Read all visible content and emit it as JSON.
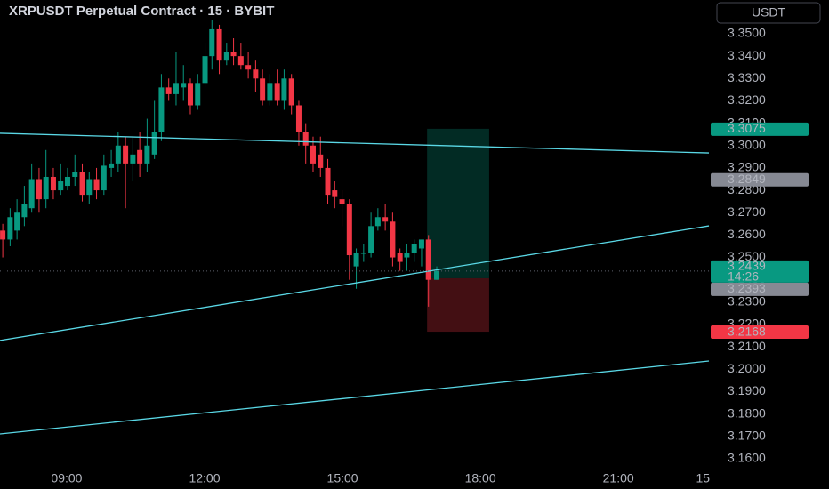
{
  "chart_data": {
    "type": "candlestick",
    "title": "XRPUSDT Perpetual Contract · 15 · BYBIT",
    "currency": "USDT",
    "up_color": "#089981",
    "down_color": "#f23645",
    "x": [
      7.61,
      7.77,
      7.92,
      8.08,
      8.24,
      8.4,
      8.55,
      8.71,
      8.87,
      9.02,
      9.18,
      9.34,
      9.49,
      9.65,
      9.81,
      9.97,
      10.12,
      10.28,
      10.44,
      10.59,
      10.75,
      10.91,
      11.06,
      11.22,
      11.38,
      11.54,
      11.69,
      11.85,
      12.01,
      12.16,
      12.32,
      12.48,
      12.63,
      12.79,
      12.95,
      13.11,
      13.26,
      13.42,
      13.58,
      13.73,
      13.89,
      14.05,
      14.2,
      14.36,
      14.52,
      14.68,
      14.83,
      14.99,
      15.15,
      15.3,
      15.46,
      15.62,
      15.77,
      15.93,
      16.09,
      16.25,
      16.4,
      16.56,
      16.72,
      16.87,
      17.05
    ],
    "open": [
      3.262,
      3.258,
      3.262,
      3.268,
      3.272,
      3.285,
      3.276,
      3.286,
      3.28,
      3.282,
      3.286,
      3.288,
      3.278,
      3.285,
      3.28,
      3.29,
      3.292,
      3.3,
      3.292,
      3.298,
      3.292,
      3.296,
      3.306,
      3.326,
      3.323,
      3.326,
      3.328,
      3.318,
      3.328,
      3.34,
      3.352,
      3.338,
      3.342,
      3.34,
      3.336,
      3.334,
      3.33,
      3.32,
      3.328,
      3.32,
      3.33,
      3.318,
      3.306,
      3.3,
      3.296,
      3.29,
      3.28,
      3.276,
      3.274,
      3.246,
      3.252,
      3.252,
      3.264,
      3.268,
      3.266,
      3.252,
      3.25,
      3.252,
      3.254,
      3.258,
      3.24
    ],
    "high": [
      3.265,
      3.272,
      3.276,
      3.282,
      3.292,
      3.29,
      3.298,
      3.29,
      3.292,
      3.29,
      3.296,
      3.292,
      3.288,
      3.29,
      3.296,
      3.298,
      3.306,
      3.304,
      3.304,
      3.306,
      3.312,
      3.32,
      3.332,
      3.33,
      3.342,
      3.336,
      3.33,
      3.332,
      3.346,
      3.356,
      3.354,
      3.346,
      3.348,
      3.346,
      3.342,
      3.338,
      3.334,
      3.332,
      3.334,
      3.334,
      3.332,
      3.32,
      3.31,
      3.304,
      3.304,
      3.294,
      3.284,
      3.28,
      3.276,
      3.254,
      3.256,
      3.27,
      3.272,
      3.274,
      3.27,
      3.254,
      3.256,
      3.258,
      3.258,
      3.26,
      3.246
    ],
    "low": [
      3.25,
      3.255,
      3.258,
      3.264,
      3.27,
      3.27,
      3.272,
      3.276,
      3.278,
      3.28,
      3.282,
      3.275,
      3.274,
      3.276,
      3.278,
      3.286,
      3.288,
      3.272,
      3.284,
      3.286,
      3.288,
      3.294,
      3.302,
      3.32,
      3.318,
      3.32,
      3.314,
      3.316,
      3.326,
      3.334,
      3.332,
      3.336,
      3.336,
      3.334,
      3.33,
      3.324,
      3.318,
      3.318,
      3.318,
      3.316,
      3.314,
      3.3,
      3.292,
      3.288,
      3.286,
      3.274,
      3.272,
      3.264,
      3.24,
      3.236,
      3.248,
      3.25,
      3.262,
      3.262,
      3.246,
      3.244,
      3.244,
      3.248,
      3.246,
      3.228,
      3.24
    ],
    "close": [
      3.258,
      3.268,
      3.27,
      3.274,
      3.285,
      3.276,
      3.286,
      3.28,
      3.284,
      3.286,
      3.288,
      3.278,
      3.285,
      3.28,
      3.291,
      3.292,
      3.3,
      3.292,
      3.296,
      3.292,
      3.3,
      3.306,
      3.326,
      3.323,
      3.328,
      3.328,
      3.318,
      3.328,
      3.34,
      3.352,
      3.338,
      3.342,
      3.34,
      3.336,
      3.334,
      3.33,
      3.32,
      3.328,
      3.32,
      3.33,
      3.318,
      3.306,
      3.3,
      3.292,
      3.29,
      3.278,
      3.277,
      3.274,
      3.251,
      3.252,
      3.252,
      3.264,
      3.268,
      3.266,
      3.25,
      3.248,
      3.252,
      3.256,
      3.258,
      3.24,
      3.2439
    ],
    "xlim": [
      7.55,
      22.97
    ],
    "xticks": [
      {
        "value": 9,
        "label": "09:00"
      },
      {
        "value": 12,
        "label": "12:00"
      },
      {
        "value": 15,
        "label": "15:00"
      },
      {
        "value": 18,
        "label": "18:00"
      },
      {
        "value": 21,
        "label": "21:00"
      },
      {
        "value": 22.84,
        "label": "15"
      }
    ],
    "ylim": [
      3.1564,
      3.3651
    ],
    "yticks": [
      {
        "value": 3.16,
        "label": "3.1600"
      },
      {
        "value": 3.17,
        "label": "3.1700"
      },
      {
        "value": 3.18,
        "label": "3.1800"
      },
      {
        "value": 3.19,
        "label": "3.1900"
      },
      {
        "value": 3.2,
        "label": "3.2000"
      },
      {
        "value": 3.21,
        "label": "3.2100"
      },
      {
        "value": 3.22,
        "label": "3.2200"
      },
      {
        "value": 3.23,
        "label": "3.2300"
      },
      {
        "value": 3.24,
        "label": "3.2400"
      },
      {
        "value": 3.25,
        "label": "3.2500"
      },
      {
        "value": 3.26,
        "label": "3.2600"
      },
      {
        "value": 3.27,
        "label": "3.2700"
      },
      {
        "value": 3.28,
        "label": "3.2800"
      },
      {
        "value": 3.29,
        "label": "3.2900"
      },
      {
        "value": 3.3,
        "label": "3.3000"
      },
      {
        "value": 3.31,
        "label": "3.3100"
      },
      {
        "value": 3.32,
        "label": "3.3200"
      },
      {
        "value": 3.33,
        "label": "3.3300"
      },
      {
        "value": 3.34,
        "label": "3.3400"
      },
      {
        "value": 3.35,
        "label": "3.3500"
      }
    ],
    "line_color": "#5ad8e6",
    "lines": [
      {
        "x": [
          7.55,
          22.97
        ],
        "y": [
          3.3055,
          3.2967
        ]
      },
      {
        "x": [
          7.55,
          22.97
        ],
        "y": [
          3.2129,
          3.2641
        ]
      },
      {
        "x": [
          7.55,
          22.97
        ],
        "y": [
          3.1711,
          3.2037
        ]
      }
    ],
    "position": {
      "x": [
        16.84,
        18.19
      ],
      "entry": 3.2407,
      "target": 3.3075,
      "stop": 3.2168
    },
    "price_labels": [
      {
        "value": 3.3075,
        "color": "#089981"
      },
      {
        "value": 3.2849,
        "color": "#868993"
      },
      {
        "value": 3.2393,
        "color": "#868993"
      },
      {
        "value": 3.2168,
        "color": "#f23645"
      }
    ],
    "last": {
      "value": 3.2439,
      "countdown": "14:26",
      "color": "#089981"
    }
  }
}
